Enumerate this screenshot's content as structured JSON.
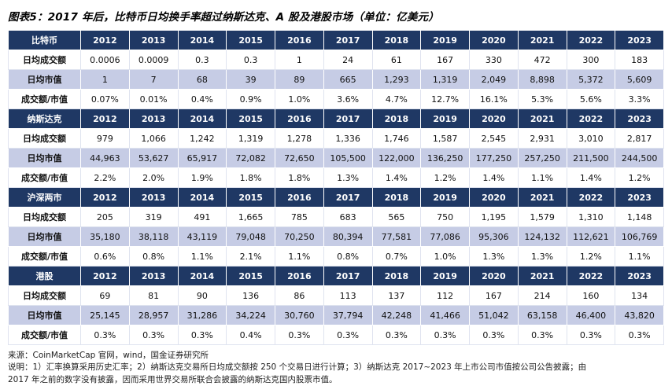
{
  "title": "图表5：2017 年后，比特币日均换手率超过纳斯达克、A 股及港股市场（单位：亿美元）",
  "years": [
    "2012",
    "2013",
    "2014",
    "2015",
    "2016",
    "2017",
    "2018",
    "2019",
    "2020",
    "2021",
    "2022",
    "2023"
  ],
  "sections": [
    {
      "name": "比特币",
      "rows": [
        {
          "label": "日均成交额",
          "values": [
            "0.0006",
            "0.0009",
            "0.3",
            "0.3",
            "1",
            "24",
            "61",
            "167",
            "330",
            "472",
            "300",
            "183"
          ]
        },
        {
          "label": "日均市值",
          "values": [
            "1",
            "7",
            "68",
            "39",
            "89",
            "665",
            "1,293",
            "1,319",
            "2,049",
            "8,898",
            "5,372",
            "5,609"
          ]
        },
        {
          "label": "成交额/市值",
          "values": [
            "0.07%",
            "0.01%",
            "0.4%",
            "0.9%",
            "1.0%",
            "3.6%",
            "4.7%",
            "12.7%",
            "16.1%",
            "5.3%",
            "5.6%",
            "3.3%"
          ]
        }
      ]
    },
    {
      "name": "纳斯达克",
      "rows": [
        {
          "label": "日均成交额",
          "values": [
            "979",
            "1,066",
            "1,242",
            "1,319",
            "1,278",
            "1,336",
            "1,746",
            "1,587",
            "2,545",
            "2,931",
            "3,010",
            "2,817"
          ]
        },
        {
          "label": "日均市值",
          "values": [
            "44,963",
            "53,627",
            "65,917",
            "72,082",
            "72,650",
            "105,500",
            "122,000",
            "136,250",
            "177,250",
            "257,250",
            "211,500",
            "244,500"
          ]
        },
        {
          "label": "成交额/市值",
          "values": [
            "2.2%",
            "2.0%",
            "1.9%",
            "1.8%",
            "1.8%",
            "1.3%",
            "1.4%",
            "1.2%",
            "1.4%",
            "1.1%",
            "1.4%",
            "1.2%"
          ]
        }
      ]
    },
    {
      "name": "沪深两市",
      "rows": [
        {
          "label": "日均成交额",
          "values": [
            "205",
            "319",
            "491",
            "1,665",
            "785",
            "683",
            "565",
            "750",
            "1,195",
            "1,579",
            "1,310",
            "1,148"
          ]
        },
        {
          "label": "日均市值",
          "values": [
            "35,180",
            "38,118",
            "43,119",
            "79,048",
            "70,250",
            "80,394",
            "77,581",
            "77,086",
            "95,306",
            "124,132",
            "112,621",
            "106,769"
          ]
        },
        {
          "label": "成交额/市值",
          "values": [
            "0.6%",
            "0.8%",
            "1.1%",
            "2.1%",
            "1.1%",
            "0.8%",
            "0.7%",
            "1.0%",
            "1.3%",
            "1.3%",
            "1.2%",
            "1.1%"
          ]
        }
      ]
    },
    {
      "name": "港股",
      "rows": [
        {
          "label": "日均成交额",
          "values": [
            "69",
            "81",
            "90",
            "136",
            "86",
            "113",
            "137",
            "112",
            "167",
            "214",
            "160",
            "134"
          ]
        },
        {
          "label": "日均市值",
          "values": [
            "25,145",
            "28,957",
            "31,286",
            "34,224",
            "30,760",
            "37,794",
            "42,248",
            "41,466",
            "51,042",
            "63,158",
            "46,400",
            "43,820"
          ]
        },
        {
          "label": "成交额/市值",
          "values": [
            "0.3%",
            "0.3%",
            "0.3%",
            "0.4%",
            "0.3%",
            "0.3%",
            "0.3%",
            "0.3%",
            "0.3%",
            "0.3%",
            "0.3%",
            "0.3%"
          ]
        }
      ]
    }
  ],
  "footer": {
    "source": "来源：CoinMarketCap 官网，wind，国金证券研究所",
    "note_line1": "说明：1）汇率换算采用历史汇率；2）纳斯达克交易所日均成交额按 250 个交易日进行计算；3）纳斯达克 2017~2023 年上市公司市值按公司公告披露；由",
    "note_line2": "2017 年之前的数字没有披露，因而采用世界交易所联合会披露的纳斯达克国内股票市值。"
  },
  "colors": {
    "header_bg": "#1F3864",
    "alt_row_bg": "#C6CCE5"
  }
}
